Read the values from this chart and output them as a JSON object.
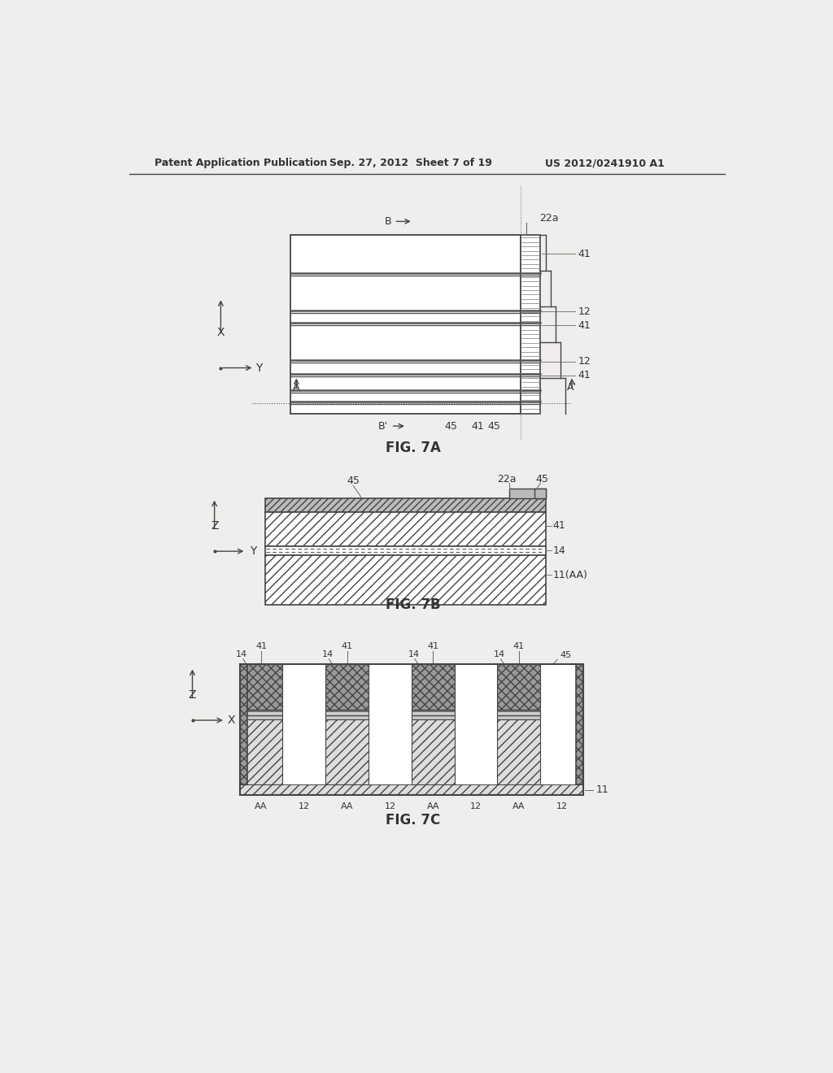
{
  "bg_color": "#f0eeec",
  "header_text": "Patent Application Publication",
  "header_date": "Sep. 27, 2012  Sheet 7 of 19",
  "header_patent": "US 2012/0241910 A1",
  "fig7a_title": "FIG. 7A",
  "fig7b_title": "FIG. 7B",
  "fig7c_title": "FIG. 7C",
  "line_color": "#444444",
  "text_color": "#333333"
}
